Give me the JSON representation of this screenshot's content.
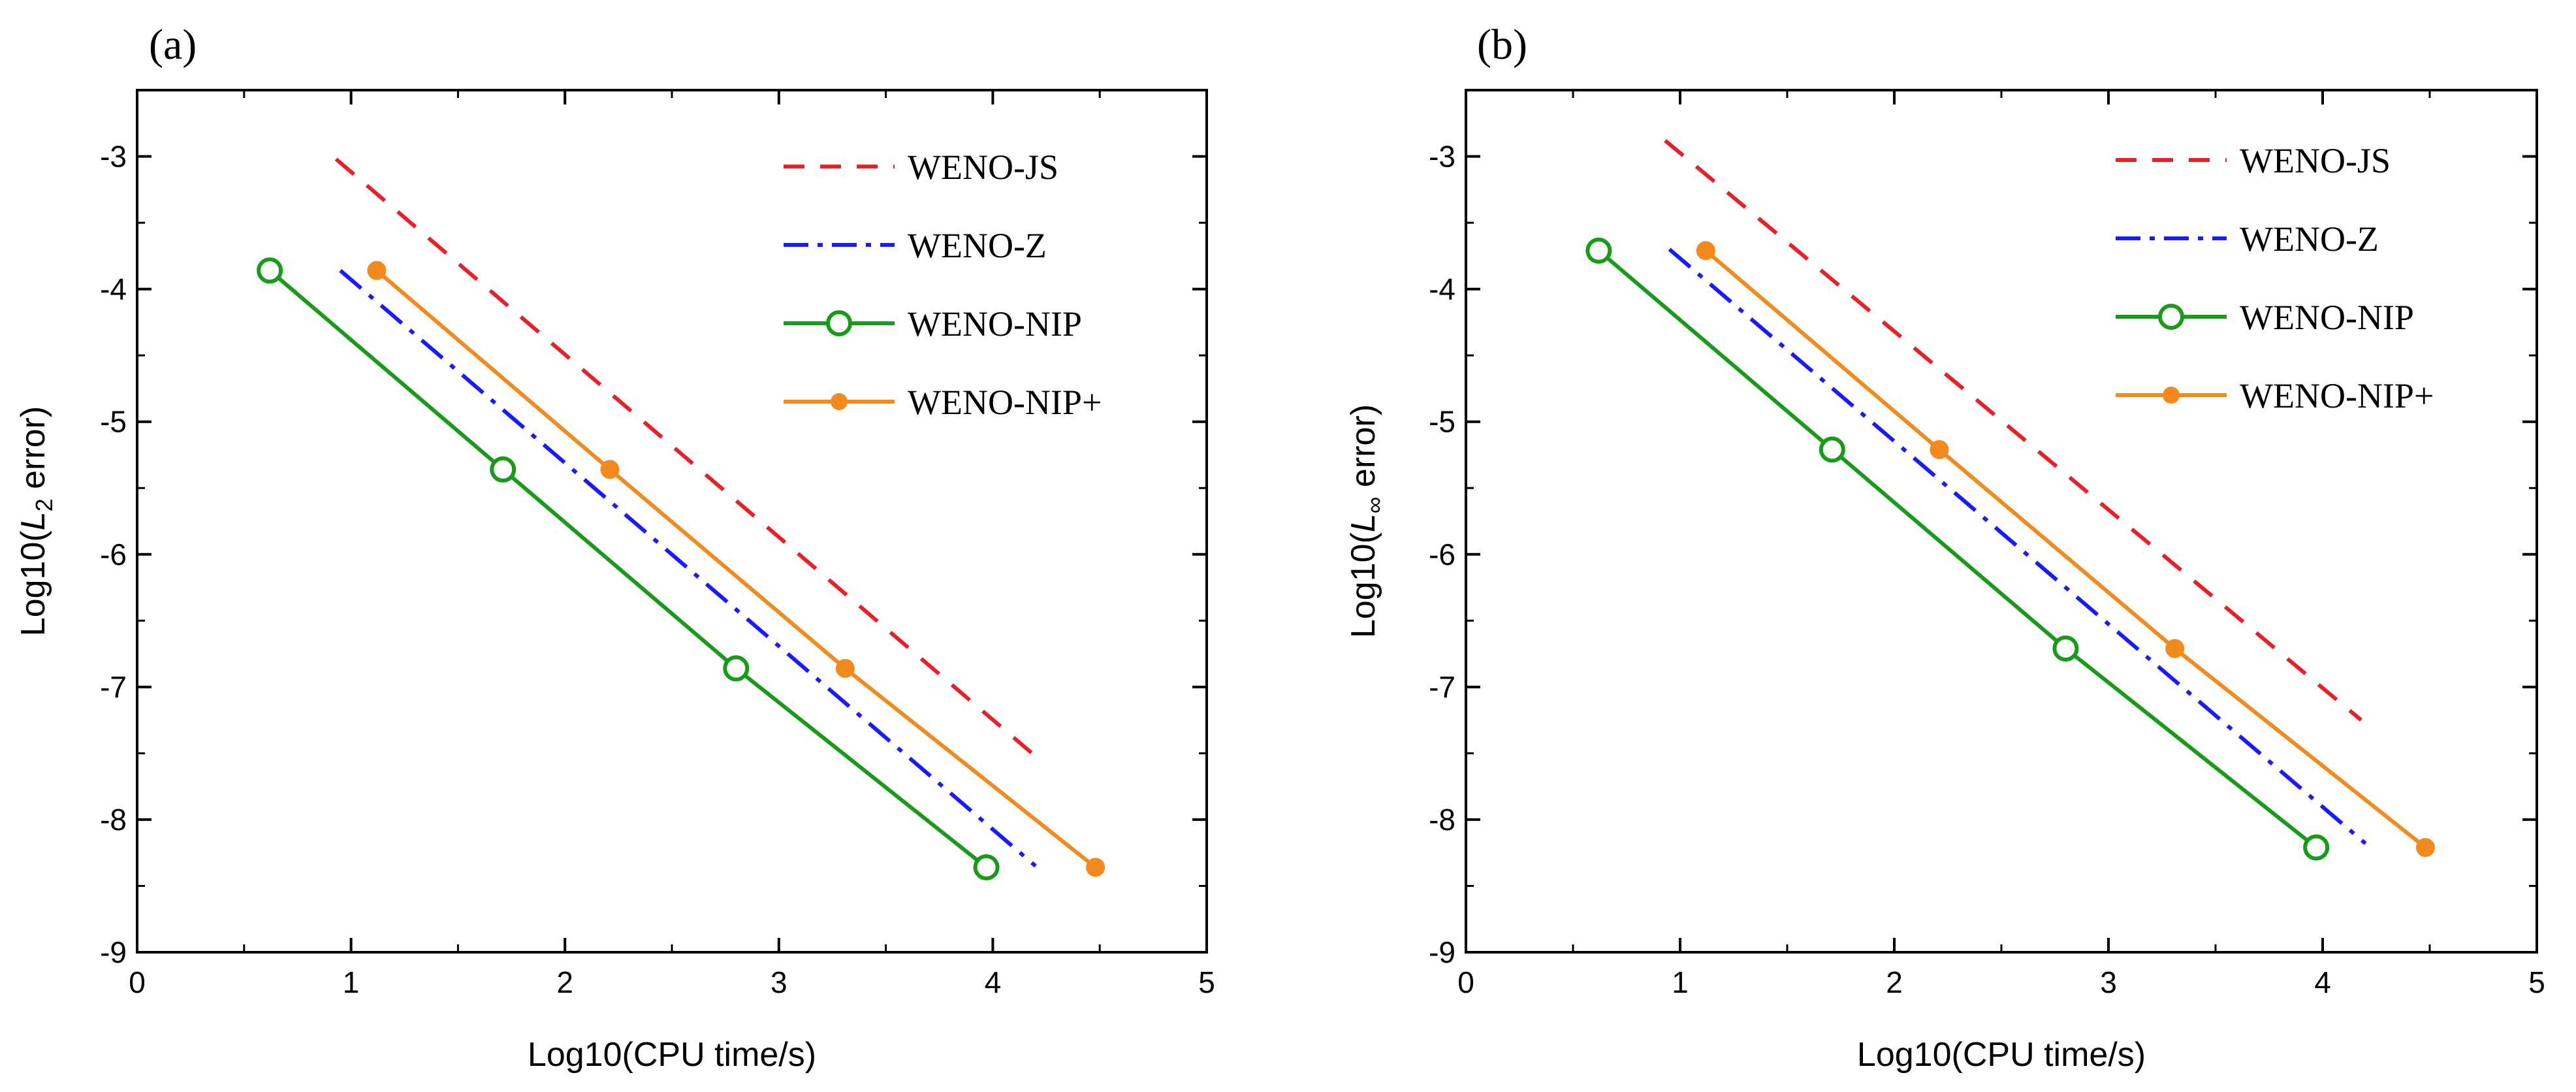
{
  "chart_data": [
    {
      "type": "line",
      "panel_label": "(a)",
      "xlabel": "Log10(CPU time/s)",
      "ylabel": {
        "prefix": "Log10(",
        "var": "L",
        "sub": "2",
        "suffix": " error)"
      },
      "xlim": [
        0,
        5
      ],
      "ylim": [
        -9,
        -2.5
      ],
      "xticks": [
        0,
        1,
        2,
        3,
        4,
        5
      ],
      "yticks": [
        -9,
        -8,
        -7,
        -6,
        -5,
        -4,
        -3
      ],
      "xtick_labels": [
        "0",
        "1",
        "2",
        "3",
        "4",
        "5"
      ],
      "ytick_labels": [
        "-9",
        "-8",
        "-7",
        "-6",
        "-5",
        "-4",
        "-3"
      ],
      "legend_position": "top-right",
      "series": [
        {
          "name": "WENO-JS",
          "color": "#e8202a",
          "style": "dashed",
          "marker": "none",
          "x": [
            0.93,
            4.22
          ],
          "y": [
            -3.02,
            -7.55
          ]
        },
        {
          "name": "WENO-Z",
          "color": "#1a1aff",
          "style": "dashdot",
          "marker": "none",
          "x": [
            0.95,
            4.2
          ],
          "y": [
            -3.86,
            -8.35
          ]
        },
        {
          "name": "WENO-NIP",
          "color": "#1a9a1a",
          "style": "solid",
          "marker": "open-circle",
          "x": [
            0.62,
            1.71,
            2.8,
            3.97
          ],
          "y": [
            -3.86,
            -5.36,
            -6.86,
            -8.36
          ]
        },
        {
          "name": "WENO-NIP+",
          "color": "#f28a1e",
          "style": "solid",
          "marker": "filled-circle",
          "x": [
            1.12,
            2.21,
            3.31,
            4.48
          ],
          "y": [
            -3.86,
            -5.36,
            -6.86,
            -8.36
          ]
        }
      ]
    },
    {
      "type": "line",
      "panel_label": "(b)",
      "xlabel": "Log10(CPU time/s)",
      "ylabel": {
        "prefix": "Log10(",
        "var": "L",
        "sub": "∞",
        "suffix": " error)"
      },
      "xlim": [
        0,
        5
      ],
      "ylim": [
        -9,
        -2.5
      ],
      "xticks": [
        0,
        1,
        2,
        3,
        4,
        5
      ],
      "yticks": [
        -9,
        -8,
        -7,
        -6,
        -5,
        -4,
        -3
      ],
      "xtick_labels": [
        "0",
        "1",
        "2",
        "3",
        "4",
        "5"
      ],
      "ytick_labels": [
        "-9",
        "-8",
        "-7",
        "-6",
        "-5",
        "-4",
        "-3"
      ],
      "legend_position": "top-right",
      "series": [
        {
          "name": "WENO-JS",
          "color": "#e8202a",
          "style": "dashed",
          "marker": "none",
          "x": [
            0.93,
            4.18
          ],
          "y": [
            -2.88,
            -7.25
          ]
        },
        {
          "name": "WENO-Z",
          "color": "#1a1aff",
          "style": "dashdot",
          "marker": "none",
          "x": [
            0.95,
            4.2
          ],
          "y": [
            -3.7,
            -8.18
          ]
        },
        {
          "name": "WENO-NIP",
          "color": "#1a9a1a",
          "style": "solid",
          "marker": "open-circle",
          "x": [
            0.62,
            1.71,
            2.8,
            3.97
          ],
          "y": [
            -3.71,
            -5.21,
            -6.71,
            -8.21
          ]
        },
        {
          "name": "WENO-NIP+",
          "color": "#f28a1e",
          "style": "solid",
          "marker": "filled-circle",
          "x": [
            1.12,
            2.21,
            3.31,
            4.48
          ],
          "y": [
            -3.71,
            -5.21,
            -6.71,
            -8.21
          ]
        }
      ]
    }
  ]
}
